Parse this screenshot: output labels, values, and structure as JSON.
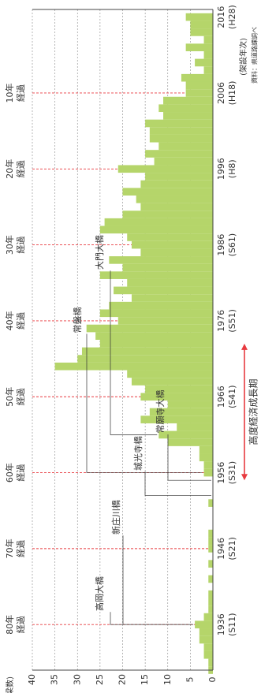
{
  "chart_data": {
    "type": "bar",
    "orientation": "rotated-90-clockwise",
    "title": "",
    "ylabel": "(橋梁数)",
    "xlabel": "(架設年次)",
    "ylim": [
      0,
      40
    ],
    "yticks": [
      0,
      5,
      10,
      15,
      20,
      25,
      30,
      35,
      40
    ],
    "source": "資料：県道路課調べ",
    "categories": [
      1930,
      1931,
      1932,
      1933,
      1934,
      1935,
      1936,
      1937,
      1938,
      1939,
      1940,
      1941,
      1942,
      1943,
      1944,
      1945,
      1946,
      1947,
      1948,
      1949,
      1950,
      1951,
      1952,
      1953,
      1954,
      1955,
      1956,
      1957,
      1958,
      1959,
      1960,
      1961,
      1962,
      1963,
      1964,
      1965,
      1966,
      1967,
      1968,
      1969,
      1970,
      1971,
      1972,
      1973,
      1974,
      1975,
      1976,
      1977,
      1978,
      1979,
      1980,
      1981,
      1982,
      1983,
      1984,
      1985,
      1986,
      1987,
      1988,
      1989,
      1990,
      1991,
      1992,
      1993,
      1994,
      1995,
      1996,
      1997,
      1998,
      1999,
      2000,
      2001,
      2002,
      2003,
      2004,
      2005,
      2006,
      2007,
      2008,
      2009,
      2010,
      2011,
      2012,
      2013,
      2014,
      2015,
      2016
    ],
    "values": [
      1,
      1,
      2,
      2,
      3,
      3,
      4,
      2,
      1,
      1,
      1,
      0,
      1,
      0,
      1,
      0,
      1,
      1,
      1,
      0,
      0,
      0,
      1,
      0,
      0,
      0,
      2,
      2,
      3,
      3,
      10,
      12,
      8,
      16,
      14,
      10,
      16,
      15,
      18,
      19,
      35,
      30,
      29,
      25,
      26,
      28,
      21,
      25,
      23,
      18,
      22,
      19,
      25,
      20,
      23,
      16,
      18,
      19,
      25,
      24,
      20,
      16,
      17,
      20,
      16,
      15,
      21,
      13,
      15,
      12,
      14,
      14,
      15,
      11,
      12,
      11,
      6,
      6,
      7,
      2,
      4,
      2,
      6,
      2,
      5,
      5,
      6
    ],
    "x_axis_labels": [
      {
        "year": 1936,
        "line1": "1936",
        "line2": "(S11)"
      },
      {
        "year": 1946,
        "line1": "1946",
        "line2": "(S21)"
      },
      {
        "year": 1956,
        "line1": "1956",
        "line2": "(S31)"
      },
      {
        "year": 1966,
        "line1": "1966",
        "line2": "(S41)"
      },
      {
        "year": 1976,
        "line1": "1976",
        "line2": "(S51)"
      },
      {
        "year": 1986,
        "line1": "1986",
        "line2": "(S61)"
      },
      {
        "year": 1996,
        "line1": "1996",
        "line2": "(H8)"
      },
      {
        "year": 2006,
        "line1": "2006",
        "line2": "(H18)"
      },
      {
        "year": 2016,
        "line1": "2016",
        "line2": "(H28)"
      }
    ],
    "elapsed_markers": [
      {
        "year": 1936,
        "line1": "80年",
        "line2": "経過"
      },
      {
        "year": 1946,
        "line1": "70年",
        "line2": "経過"
      },
      {
        "year": 1956,
        "line1": "60年",
        "line2": "経過"
      },
      {
        "year": 1966,
        "line1": "50年",
        "line2": "経過"
      },
      {
        "year": 1976,
        "line1": "40年",
        "line2": "経過"
      },
      {
        "year": 1986,
        "line1": "30年",
        "line2": "経過"
      },
      {
        "year": 1996,
        "line1": "20年",
        "line2": "経過"
      },
      {
        "year": 2006,
        "line1": "10年",
        "line2": "経過"
      }
    ],
    "bridge_annotations": [
      {
        "name": "高岡大橋",
        "year": 1936
      },
      {
        "name": "新庄川橋",
        "year": 1936
      },
      {
        "name": "城光寺橋",
        "year": 1953
      },
      {
        "name": "常願寺大橋",
        "year": 1955
      },
      {
        "name": "常盤橋",
        "year": 1956
      },
      {
        "name": "大門大橋",
        "year": 1961
      }
    ],
    "period_annotation": {
      "label": "高度経済成長期",
      "from": 1955,
      "to": 1973
    },
    "grid": true,
    "colors": {
      "bar": "#b5d56a",
      "marker_line": "#e8393f",
      "period": "#e83a3f",
      "grid": "#888888",
      "axis": "#444444",
      "text": "#333333"
    }
  }
}
